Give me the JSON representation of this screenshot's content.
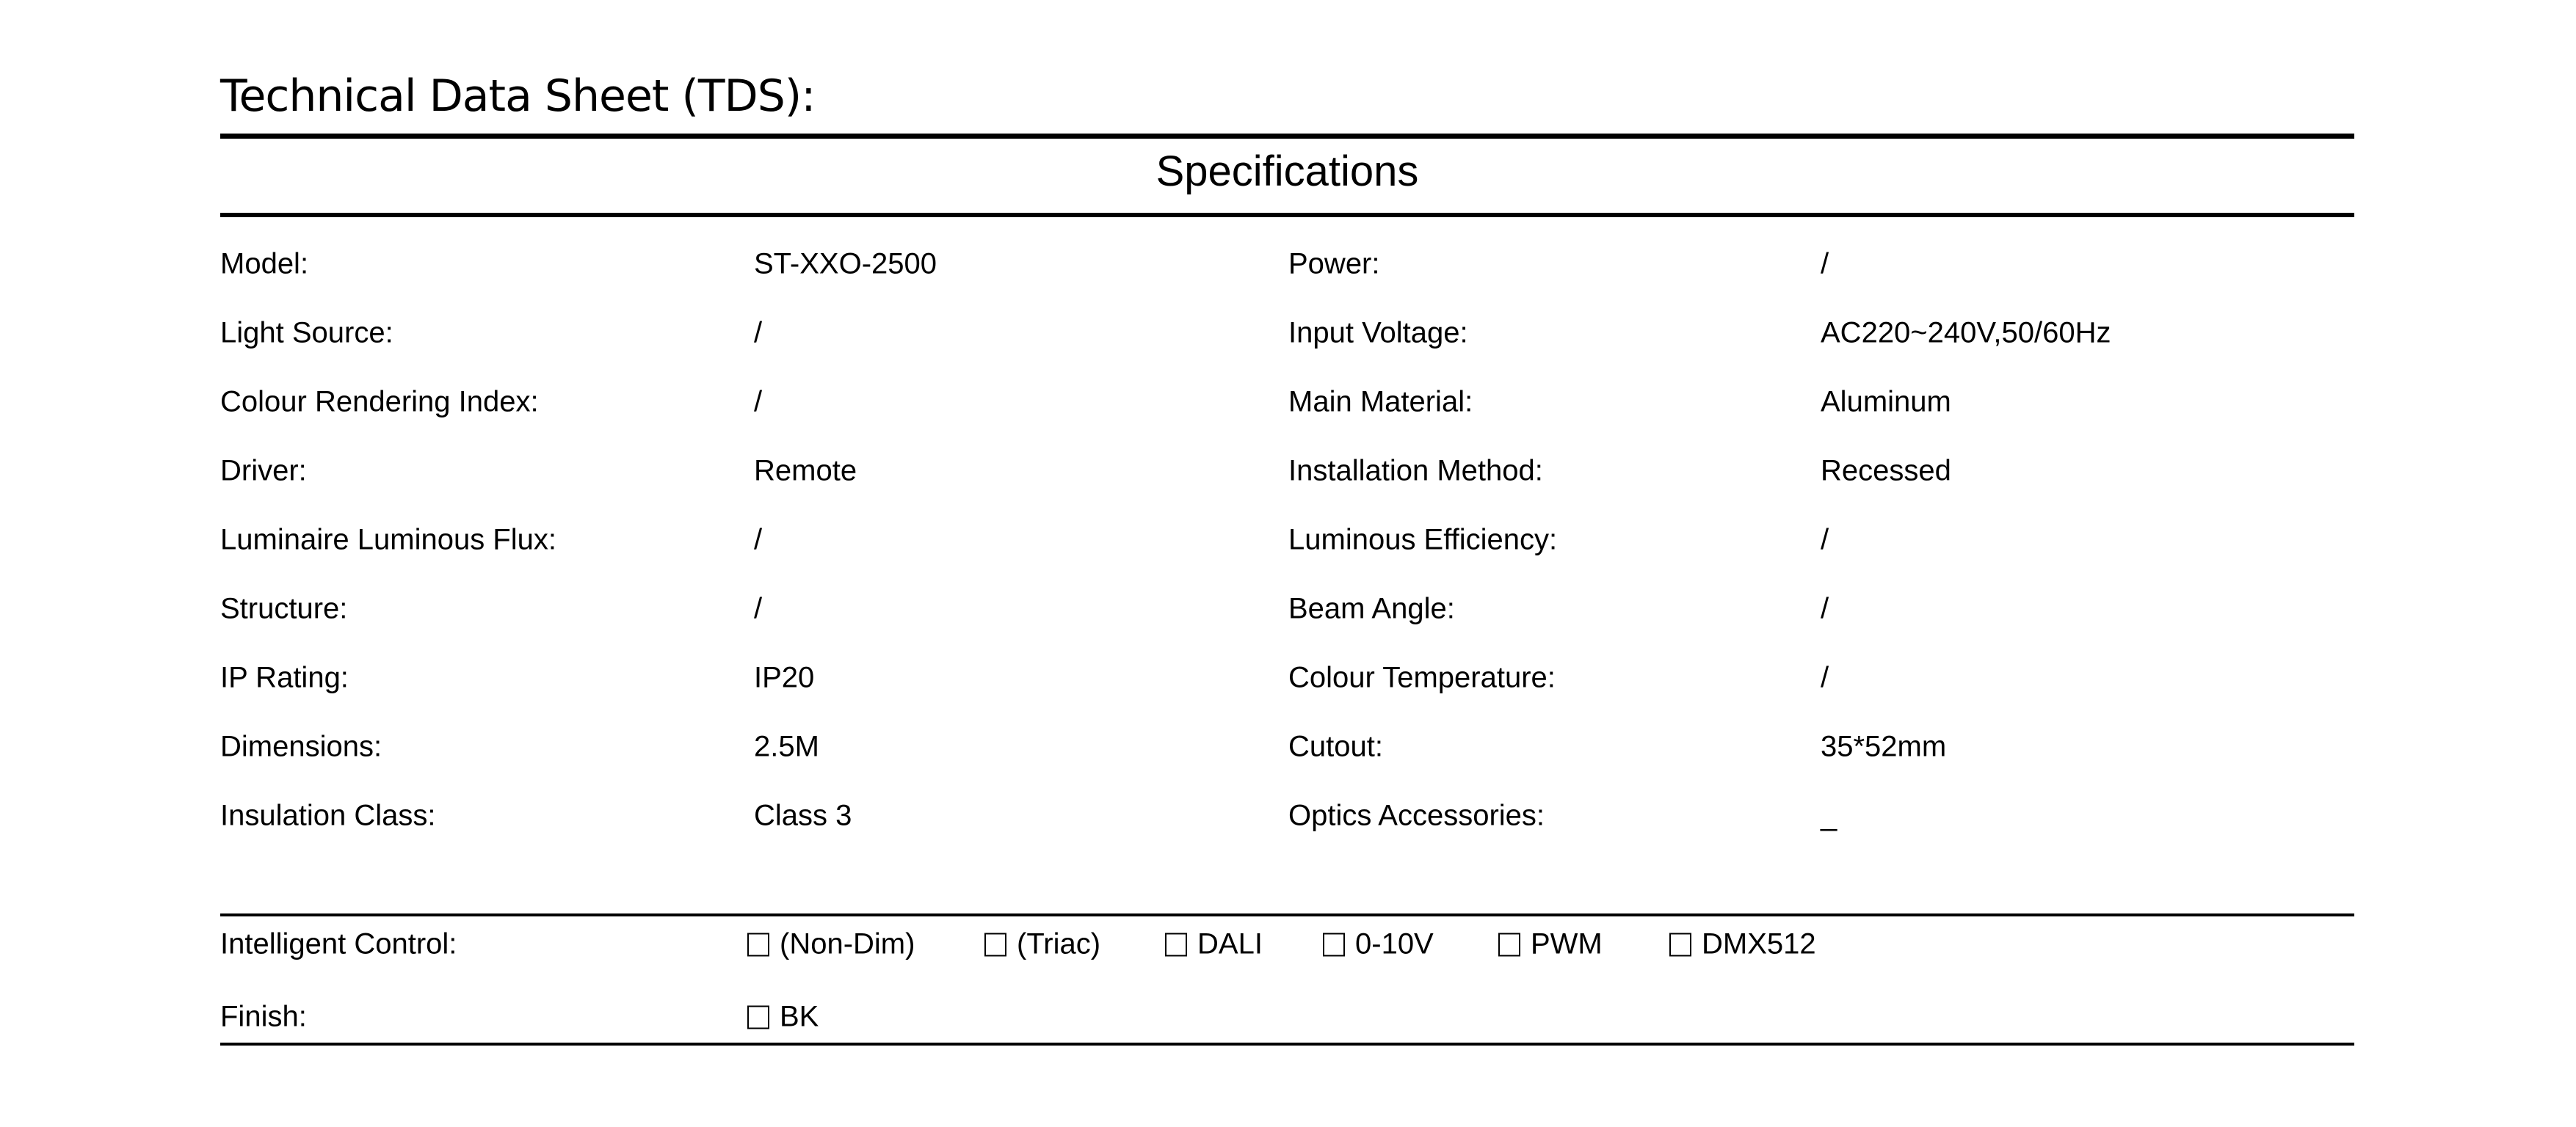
{
  "title": "Technical Data Sheet (TDS):",
  "section_title": "Specifications",
  "left_specs": [
    {
      "label": "Model:",
      "value": "ST-XXO-2500"
    },
    {
      "label": "Light Source:",
      "value": "/"
    },
    {
      "label": "Colour Rendering Index:",
      "value": "/"
    },
    {
      "label": "Driver:",
      "value": "Remote"
    },
    {
      "label": "Luminaire Luminous Flux:",
      "value": "/"
    },
    {
      "label": "Structure:",
      "value": "/"
    },
    {
      "label": "IP Rating:",
      "value": "IP20"
    },
    {
      "label": "Dimensions:",
      "value": "2.5M"
    },
    {
      "label": "Insulation Class:",
      "value": "Class 3"
    }
  ],
  "right_specs": [
    {
      "label": "Power:",
      "value": "/"
    },
    {
      "label": "Input Voltage:",
      "value": "AC220~240V,50/60Hz"
    },
    {
      "label": "Main Material:",
      "value": "Aluminum"
    },
    {
      "label": "Installation Method:",
      "value": "Recessed"
    },
    {
      "label": "Luminous Efficiency:",
      "value": "/"
    },
    {
      "label": "Beam Angle:",
      "value": "/"
    },
    {
      "label": "Colour Temperature:",
      "value": "/"
    },
    {
      "label": "Cutout:",
      "value": "35*52mm"
    },
    {
      "label": "Optics Accessories:",
      "value": "_"
    }
  ],
  "intelligent_control": {
    "label": "Intelligent Control:",
    "options": [
      {
        "label": "(Non-Dim)",
        "checked": false
      },
      {
        "label": "(Triac)",
        "checked": false
      },
      {
        "label": "DALI",
        "checked": false
      },
      {
        "label": "0-10V",
        "checked": false
      },
      {
        "label": "PWM",
        "checked": false
      },
      {
        "label": "DMX512",
        "checked": false
      }
    ]
  },
  "finish": {
    "label": "Finish:",
    "options": [
      {
        "label": "BK",
        "checked": false
      }
    ]
  }
}
